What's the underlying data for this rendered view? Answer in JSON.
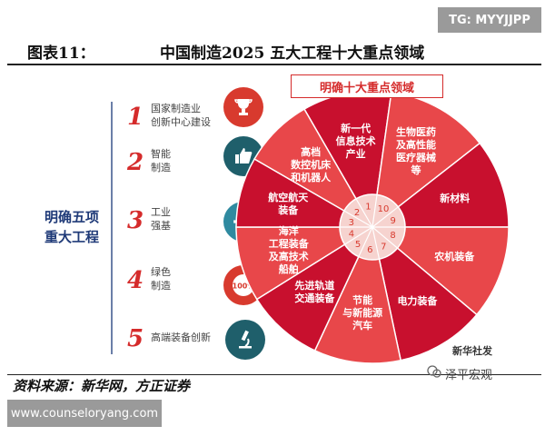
{
  "watermark_top": "TG: MYYJJPP",
  "figure": {
    "label": "图表11：",
    "title": "中国制造2025 五大工程十大重点领域"
  },
  "left": {
    "label_line1": "明确五项",
    "label_line2": "重大工程",
    "items": [
      {
        "num": "1",
        "line1": "国家制造业",
        "line2": "创新中心建设",
        "icon": "trophy-icon",
        "color": "#d83a2e"
      },
      {
        "num": "2",
        "line1": "智能",
        "line2": "制造",
        "icon": "thumbs-up-icon",
        "color": "#1f5f6b"
      },
      {
        "num": "3",
        "line1": "工业",
        "line2": "强基",
        "icon": "gear-icon",
        "color": "#2f8aa0"
      },
      {
        "num": "4",
        "line1": "绿色",
        "line2": "制造",
        "icon": "badge-100-icon",
        "color": "#d83a2e"
      },
      {
        "num": "5",
        "line1": "高端装备创新",
        "line2": "",
        "icon": "microscope-icon",
        "color": "#1f5f6b"
      }
    ],
    "badge_text": "100%"
  },
  "wheel": {
    "banner": "明确十大重点领域",
    "center_numbers": [
      "1",
      "2",
      "3",
      "4",
      "5",
      "6",
      "7",
      "8",
      "9",
      "10"
    ],
    "sectors": [
      {
        "n": "1",
        "lines": [
          "新一代",
          "信息技术",
          "产业"
        ],
        "color": "#c8102e"
      },
      {
        "n": "2",
        "lines": [
          "高档",
          "数控机床",
          "和机器人"
        ],
        "color": "#e8474a"
      },
      {
        "n": "3",
        "lines": [
          "航空航天",
          "装备"
        ],
        "color": "#c8102e"
      },
      {
        "n": "4",
        "lines": [
          "海洋",
          "工程装备",
          "及高技术",
          "船舶"
        ],
        "color": "#e8474a"
      },
      {
        "n": "5",
        "lines": [
          "先进轨道",
          "交通装备"
        ],
        "color": "#c8102e"
      },
      {
        "n": "6",
        "lines": [
          "节能",
          "与新能源",
          "汽车"
        ],
        "color": "#e8474a"
      },
      {
        "n": "7",
        "lines": [
          "电力装备"
        ],
        "color": "#c8102e"
      },
      {
        "n": "8",
        "lines": [
          "农机装备"
        ],
        "color": "#e8474a"
      },
      {
        "n": "9",
        "lines": [
          "新材料"
        ],
        "color": "#c8102e"
      },
      {
        "n": "10",
        "lines": [
          "生物医药",
          "及高性能",
          "医疗器械",
          "等"
        ],
        "color": "#e8474a"
      }
    ],
    "corner_text": "新华社发"
  },
  "source": "资料来源：新华网，方正证券",
  "bottom_watermark": "泽平宏观",
  "url": "www.counseloryang.com"
}
